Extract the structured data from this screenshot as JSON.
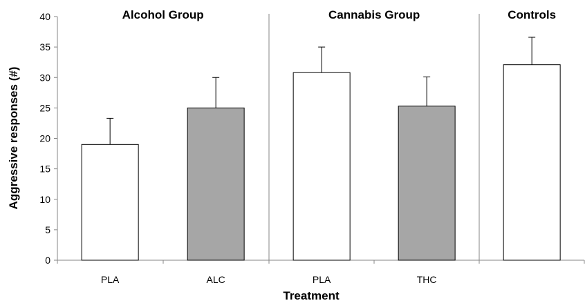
{
  "chart_data": {
    "type": "bar",
    "xlabel": "Treatment",
    "ylabel": "Aggressive  responses (#)",
    "ylim": [
      0,
      40
    ],
    "yticks": [
      0,
      5,
      10,
      15,
      20,
      25,
      30,
      35,
      40
    ],
    "grid": false,
    "categories": [
      "PLA",
      "ALC",
      "PLA",
      "THC",
      ""
    ],
    "values": [
      19.0,
      25.0,
      30.8,
      25.3,
      32.1
    ],
    "error_upper": [
      23.3,
      30.0,
      35.0,
      30.1,
      36.6
    ],
    "bar_colors": [
      "#ffffff",
      "#a6a6a6",
      "#ffffff",
      "#a6a6a6",
      "#ffffff"
    ],
    "groups": [
      {
        "name": "Alcohol Group",
        "category_indices": [
          0,
          1
        ]
      },
      {
        "name": "Cannabis Group",
        "category_indices": [
          2,
          3
        ]
      },
      {
        "name": "Controls",
        "category_indices": [
          4
        ]
      }
    ]
  }
}
